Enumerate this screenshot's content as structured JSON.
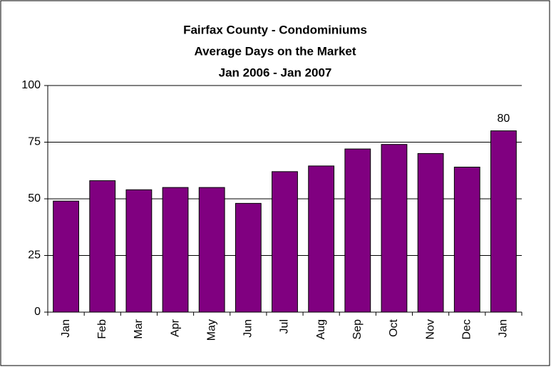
{
  "chart_data": {
    "type": "bar",
    "title": [
      "Fairfax County - Condominiums",
      "Average Days on the Market",
      "Jan 2006 - Jan 2007"
    ],
    "categories": [
      "Jan",
      "Feb",
      "Mar",
      "Apr",
      "May",
      "Jun",
      "Jul",
      "Aug",
      "Sep",
      "Oct",
      "Nov",
      "Dec",
      "Jan"
    ],
    "values": [
      49,
      58,
      54,
      55,
      55,
      48,
      62,
      64.5,
      72,
      74,
      70,
      64,
      80
    ],
    "value_labels": [
      null,
      null,
      null,
      null,
      null,
      null,
      null,
      null,
      null,
      null,
      null,
      null,
      "80"
    ],
    "color": "#800080",
    "ylim": [
      0,
      100
    ],
    "yticks": [
      0,
      25,
      50,
      75,
      100
    ],
    "grid": true
  }
}
